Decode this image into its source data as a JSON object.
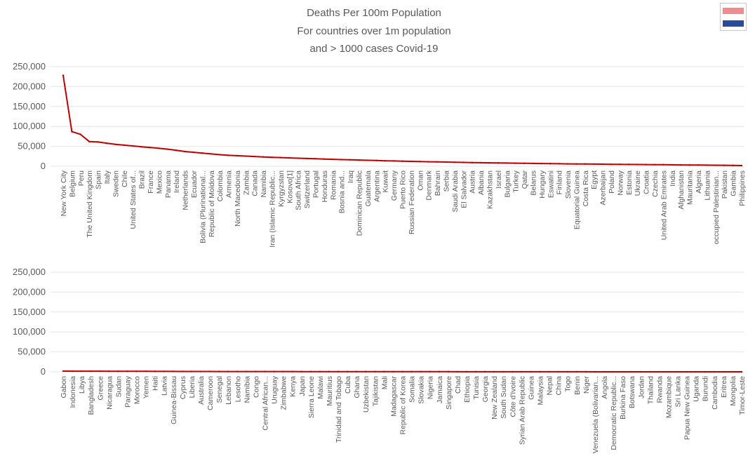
{
  "chart_data": [
    {
      "type": "line",
      "title": [
        "Deaths Per 100m Population",
        "For countries over 1m population",
        "and > 1000 cases Covid-19"
      ],
      "xlabel": "",
      "ylabel": "",
      "ylim": [
        0,
        250000
      ],
      "yticks": [
        "250,000",
        "200,000",
        "150,000",
        "100,000",
        "50,000",
        "0"
      ],
      "color": "#c00000",
      "grid": true,
      "categories": [
        "New York City",
        "Belgium",
        "Peru",
        "The United Kingdom",
        "Spain",
        "Italy",
        "Sweden",
        "Chile",
        "United States of...",
        "Brazil",
        "France",
        "Mexico",
        "Panama",
        "Ireland",
        "Netherlands",
        "Ecuador",
        "Bolivia (Plurinational...",
        "Republic of Moldova",
        "Colombia",
        "Armenia",
        "North Macedonia",
        "Zambia",
        "Canada",
        "Namibia",
        "Iran (Islamic Republic...",
        "Kyrgyzstan",
        "Kosovo[1]",
        "South Africa",
        "Switzerland",
        "Portugal",
        "Honduras",
        "Romania",
        "Bosnia and...",
        "Iraq",
        "Dominican Republic",
        "Guatemala",
        "Argentina",
        "Kuwait",
        "Germany",
        "Puerto Rico",
        "Russian Federation",
        "Oman",
        "Denmark",
        "Bahrain",
        "Serbia",
        "Saudi Arabia",
        "El Salvador",
        "Austria",
        "Albania",
        "Kazakhstan",
        "Israel",
        "Bulgaria",
        "Turkey",
        "Qatar",
        "Belarus",
        "Hungary",
        "Eswatini",
        "Finland",
        "Slovenia",
        "Equatorial Guinea",
        "Costa Rica",
        "Egypt",
        "Azerbaijan",
        "Poland",
        "Norway",
        "Estonia",
        "Ukraine",
        "Croatia",
        "Czechia",
        "United Arab Emirates",
        "India",
        "Afghanistan",
        "Mauritania",
        "Algeria",
        "Lithuania",
        "occupied Palestinian...",
        "Pakistan",
        "Gambia",
        "Philippines"
      ],
      "values": [
        228000,
        87000,
        80000,
        62000,
        61000,
        58000,
        55000,
        53000,
        51000,
        49000,
        47000,
        45000,
        43000,
        40000,
        37000,
        35000,
        33000,
        31000,
        29000,
        27500,
        26500,
        25500,
        24500,
        23500,
        22500,
        21800,
        21000,
        20200,
        19500,
        18800,
        18100,
        17400,
        16800,
        16200,
        15600,
        15000,
        14400,
        13800,
        13300,
        12800,
        12300,
        11800,
        11300,
        10900,
        10500,
        10100,
        9700,
        9300,
        9000,
        8700,
        8400,
        8100,
        7800,
        7500,
        7200,
        6900,
        6600,
        6300,
        6000,
        5800,
        5600,
        5400,
        5200,
        5000,
        4800,
        4600,
        4400,
        4200,
        4000,
        3800,
        3600,
        3400,
        3200,
        3000,
        2800,
        2600,
        2400,
        2200,
        1800
      ]
    },
    {
      "type": "line",
      "title": "",
      "xlabel": "",
      "ylabel": "",
      "ylim": [
        0,
        250000
      ],
      "yticks": [
        "250,000",
        "200,000",
        "150,000",
        "100,000",
        "50,000",
        "0"
      ],
      "color": "#c00000",
      "grid": true,
      "categories": [
        "Gabon",
        "Indonesia",
        "Libya",
        "Bangladesh",
        "Greece",
        "Nicaragua",
        "Sudan",
        "Paraguay",
        "Morocco",
        "Yemen",
        "Haiti",
        "Latvia",
        "Guinea-Bissau",
        "Cyprus",
        "Liberia",
        "Australia",
        "Cameroon",
        "Senegal",
        "Lebanon",
        "Lesotho",
        "Namibia",
        "Congo",
        "Central African...",
        "Uruguay",
        "Zimbabwe",
        "Kenya",
        "Japan",
        "Sierra Leone",
        "Malawi",
        "Mauritius",
        "Trinidad and Tobago",
        "Cuba",
        "Ghana",
        "Uzbekistan",
        "Tajikistan",
        "Mali",
        "Madagascar",
        "Republic of Korea",
        "Somalia",
        "Slovakia",
        "Nigeria",
        "Jamaica",
        "Singapore",
        "Chad",
        "Ethiopia",
        "Tunisia",
        "Georgia",
        "New Zealand",
        "South Sudan",
        "Côte d'Ivoire",
        "Syrian Arab Republic",
        "Guinea",
        "Malaysia",
        "Nepal",
        "China",
        "Togo",
        "Benin",
        "Niger",
        "Venezuela (Bolivarian...",
        "Angola",
        "Democratic Republic...",
        "Burkina Faso",
        "Botswana",
        "Jordan",
        "Thailand",
        "Rwanda",
        "Mozambique",
        "Sri Lanka",
        "Papua New Guinea",
        "Uganda",
        "Burundi",
        "Cambodia",
        "Eritrea",
        "Mongolia",
        "Timor-Leste"
      ],
      "values": [
        1700,
        1650,
        1600,
        1550,
        1500,
        1400,
        1300,
        1250,
        1200,
        1150,
        1100,
        1050,
        1000,
        950,
        900,
        850,
        800,
        780,
        760,
        740,
        720,
        700,
        680,
        660,
        640,
        620,
        600,
        580,
        560,
        540,
        520,
        500,
        480,
        460,
        440,
        420,
        400,
        380,
        360,
        340,
        320,
        300,
        280,
        260,
        240,
        220,
        200,
        190,
        180,
        170,
        160,
        150,
        140,
        130,
        120,
        110,
        100,
        90,
        80,
        70,
        60,
        55,
        50,
        45,
        40,
        35,
        30,
        25,
        20,
        15,
        10,
        8,
        5,
        3,
        0
      ]
    }
  ]
}
